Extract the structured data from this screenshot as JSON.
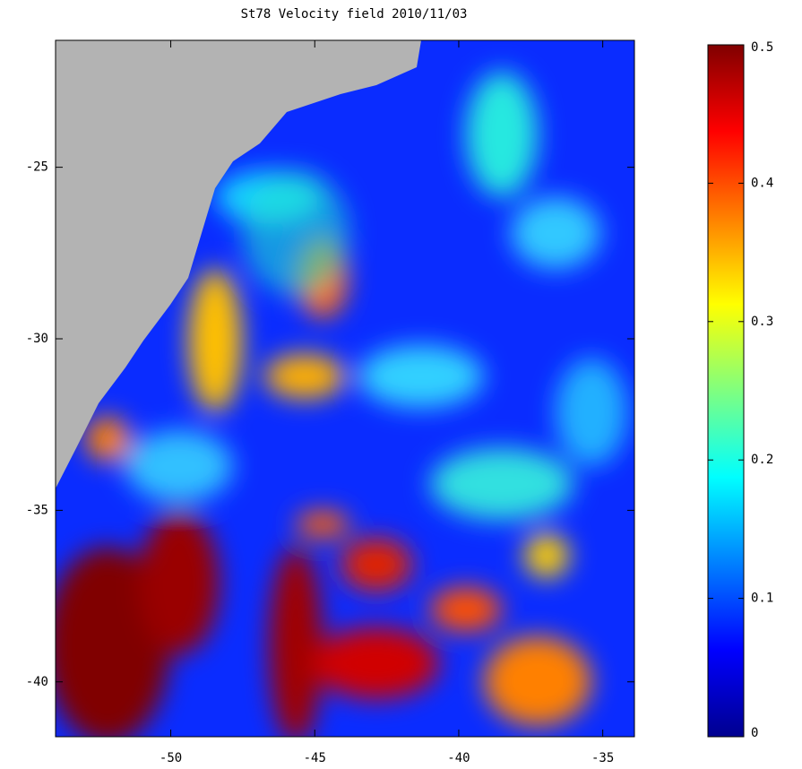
{
  "chart_data": {
    "type": "heatmap",
    "title": "St78 Velocity field 2010/11/03",
    "xlim": [
      -54,
      -33.9
    ],
    "ylim": [
      -41.6,
      -21.3
    ],
    "xticks": [
      -50,
      -45,
      -40,
      -35
    ],
    "yticks": [
      -40,
      -35,
      -30,
      -25
    ],
    "colormap": "jet",
    "land_color": "#b3b3b3",
    "colorbar": {
      "clim": [
        0,
        0.5
      ],
      "ticks": [
        0,
        0.1,
        0.2,
        0.3,
        0.4,
        0.5
      ]
    }
  }
}
